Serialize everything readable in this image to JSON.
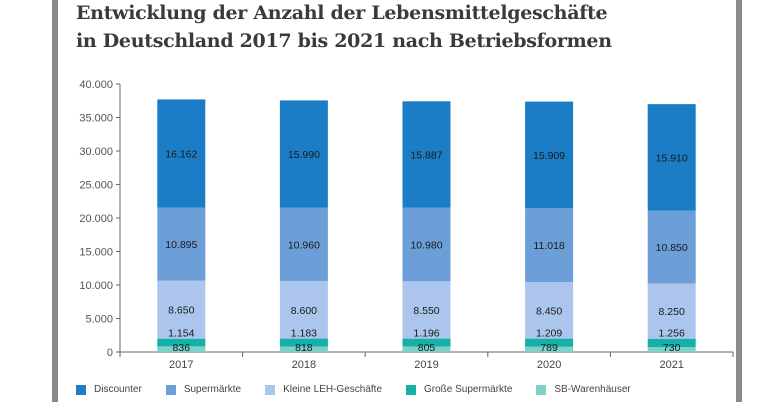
{
  "chart_data": {
    "type": "bar",
    "stacked": true,
    "title": "Entwicklung der Anzahl der Lebensmittelgeschäfte in Deutschland 2017 bis 2021 nach Betriebsformen",
    "title_lines": [
      "Entwicklung der Anzahl der Lebensmittelgeschäfte",
      "in Deutschland 2017 bis 2021 nach Betriebsformen"
    ],
    "categories": [
      "2017",
      "2018",
      "2019",
      "2020",
      "2021"
    ],
    "ylim": [
      0,
      40000
    ],
    "yticks": [
      0,
      5000,
      10000,
      15000,
      20000,
      25000,
      30000,
      35000,
      40000
    ],
    "ytick_labels": [
      "0",
      "5.000",
      "10.000",
      "15.000",
      "20.000",
      "25.000",
      "30.000",
      "35.000",
      "40.000"
    ],
    "grid": false,
    "legend_position": "bottom",
    "series": [
      {
        "name": "SB-Warenhäuser",
        "color": "#7fd0c8",
        "values": [
          836,
          818,
          805,
          789,
          730
        ],
        "labels": [
          "836",
          "818",
          "805",
          "789",
          "730"
        ]
      },
      {
        "name": "Große Supermärkte",
        "color": "#14b1a9",
        "values": [
          1154,
          1183,
          1196,
          1209,
          1256
        ],
        "labels": [
          "1.154",
          "1.183",
          "1.196",
          "1.209",
          "1.256"
        ]
      },
      {
        "name": "Kleine LEH-Geschäfte",
        "color": "#abc5ec",
        "values": [
          8650,
          8600,
          8550,
          8450,
          8250
        ],
        "labels": [
          "8.650",
          "8.600",
          "8.550",
          "8.450",
          "8.250"
        ]
      },
      {
        "name": "Supermärkte",
        "color": "#6c9fd8",
        "values": [
          10895,
          10960,
          10980,
          11018,
          10850
        ],
        "labels": [
          "10.895",
          "10.960",
          "10.980",
          "11.018",
          "10.850"
        ]
      },
      {
        "name": "Discounter",
        "color": "#1b7dc5",
        "values": [
          16162,
          15990,
          15887,
          15909,
          15910
        ],
        "labels": [
          "16.162",
          "15.990",
          "15.887",
          "15.909",
          "15.910"
        ]
      }
    ],
    "legend_order": [
      "Discounter",
      "Supermärkte",
      "Kleine LEH-Geschäfte",
      "Große Supermärkte",
      "SB-Warenhäuser"
    ]
  }
}
